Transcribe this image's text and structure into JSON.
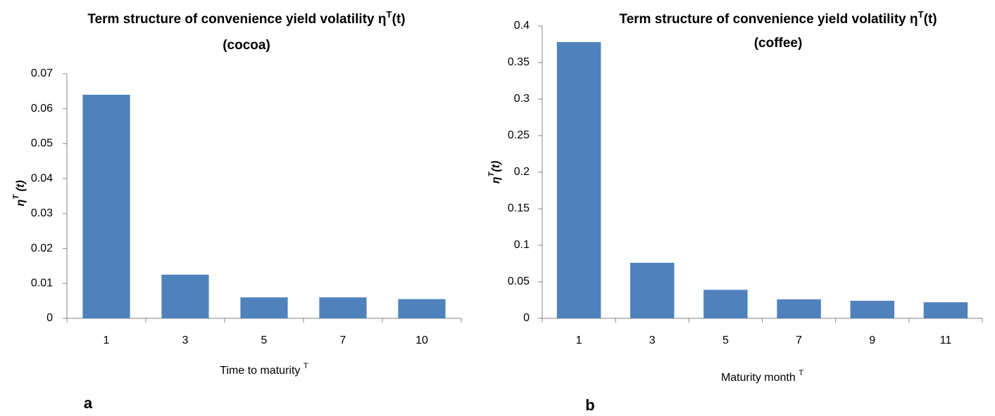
{
  "chart_data": [
    {
      "type": "bar",
      "panel": "a",
      "title": [
        "Term structure of convenience yield volatility η",
        "T",
        "(t)"
      ],
      "subtitle": "(cocoa)",
      "y_label": [
        "η",
        "T",
        " (t)"
      ],
      "x_label": [
        "Time to maturity ",
        "T"
      ],
      "categories": [
        "1",
        "3",
        "5",
        "7",
        "10"
      ],
      "values": [
        0.064,
        0.0125,
        0.006,
        0.006,
        0.0055
      ],
      "color": "#4f81bd",
      "ylim": [
        0,
        0.07
      ],
      "yticks": [
        0,
        0.01,
        0.02,
        0.03,
        0.04,
        0.05,
        0.06,
        0.07
      ],
      "grid": false
    },
    {
      "type": "bar",
      "panel": "b",
      "title": [
        "Term structure of convenience yield volatility η",
        "T",
        "(t)"
      ],
      "subtitle": "(coffee)",
      "y_label": [
        "η",
        "T",
        "(t)"
      ],
      "x_label": [
        "Maturity month ",
        "T"
      ],
      "categories": [
        "1",
        "3",
        "5",
        "7",
        "9",
        "11"
      ],
      "values": [
        0.378,
        0.076,
        0.039,
        0.026,
        0.024,
        0.022
      ],
      "color": "#4f81bd",
      "ylim": [
        0,
        0.4
      ],
      "yticks": [
        0,
        0.05,
        0.1,
        0.15,
        0.2,
        0.25,
        0.3,
        0.35,
        0.4
      ],
      "grid": false
    }
  ]
}
